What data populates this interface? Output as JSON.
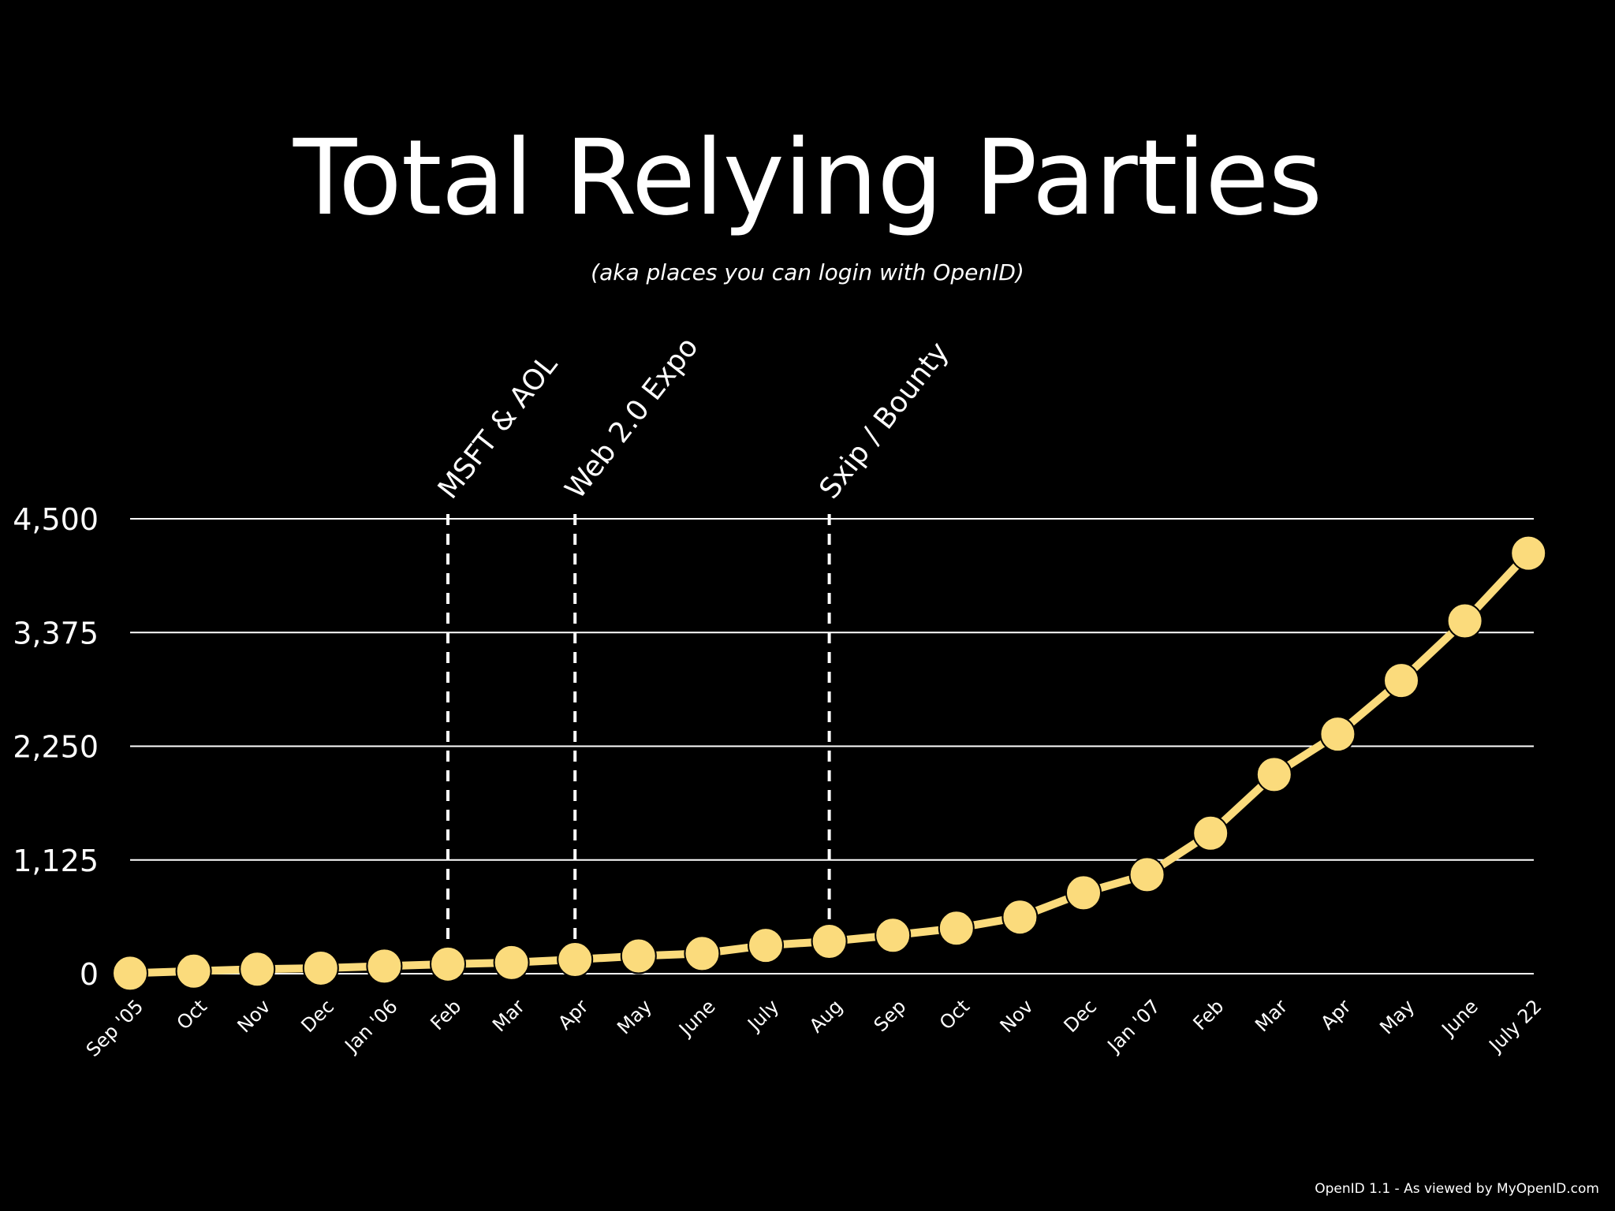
{
  "colors": {
    "background": "#000000",
    "text": "#ffffff",
    "gridline": "#ffffff",
    "series": "#fbdb7c",
    "annotation_line": "#ffffff"
  },
  "footer": {
    "credit": "OpenID 1.1 - As viewed by MyOpenID.com"
  },
  "chart_data": {
    "type": "line",
    "title": "Total Relying Parties",
    "subtitle": "(aka places you can login with OpenID)",
    "xlabel": "",
    "ylabel": "",
    "ylim": [
      0,
      4500
    ],
    "yticks": [
      0,
      1125,
      2250,
      3375,
      4500
    ],
    "ytick_labels": [
      "0",
      "1,125",
      "2,250",
      "3,375",
      "4,500"
    ],
    "grid": true,
    "categories": [
      "Sep '05",
      "Oct",
      "Nov",
      "Dec",
      "Jan '06",
      "Feb",
      "Mar",
      "Apr",
      "May",
      "June",
      "July",
      "Aug",
      "Sep",
      "Oct",
      "Nov",
      "Dec",
      "Jan '07",
      "Feb",
      "Mar",
      "Apr",
      "May",
      "June",
      "July 22"
    ],
    "series": [
      {
        "values": [
          5,
          25,
          45,
          55,
          75,
          95,
          110,
          140,
          175,
          200,
          280,
          320,
          380,
          450,
          560,
          800,
          980,
          1390,
          1970,
          2370,
          2900,
          3490,
          4160
        ]
      }
    ],
    "annotations": [
      {
        "label": "Sxip / Bounty",
        "x_category": "Aug"
      },
      {
        "label": "MSFT & AOL",
        "x_category": "Feb"
      },
      {
        "label": "Web  2.0 Expo",
        "x_category": "Apr"
      }
    ]
  }
}
